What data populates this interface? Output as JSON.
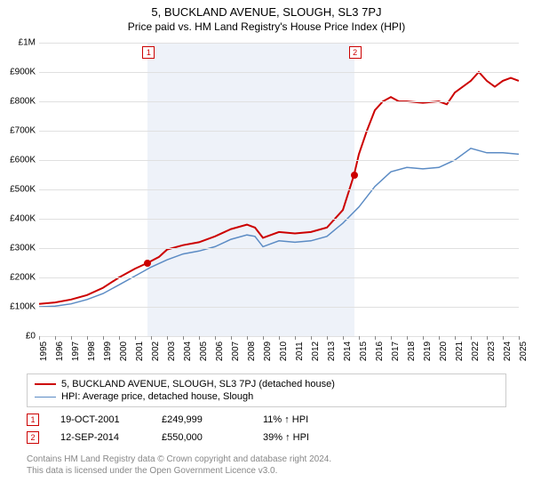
{
  "title": "5, BUCKLAND AVENUE, SLOUGH, SL3 7PJ",
  "subtitle": "Price paid vs. HM Land Registry's House Price Index (HPI)",
  "chart": {
    "type": "line",
    "background_color": "#ffffff",
    "grid_color": "#e0e0e0",
    "axis_color": "#888888",
    "highlight_band_color": "#eef2f9",
    "xlim": [
      1995,
      2025
    ],
    "ylim": [
      0,
      1000000
    ],
    "ytick_step": 100000,
    "y_labels": [
      "£0",
      "£100K",
      "£200K",
      "£300K",
      "£400K",
      "£500K",
      "£600K",
      "£700K",
      "£800K",
      "£900K",
      "£1M"
    ],
    "x_ticks": [
      1995,
      1996,
      1997,
      1998,
      1999,
      2000,
      2001,
      2002,
      2003,
      2004,
      2005,
      2006,
      2007,
      2008,
      2009,
      2010,
      2011,
      2012,
      2013,
      2014,
      2015,
      2016,
      2017,
      2018,
      2019,
      2020,
      2021,
      2022,
      2023,
      2024,
      2025
    ],
    "highlight_band": {
      "x_start": 2001.8,
      "x_end": 2014.7
    },
    "series": [
      {
        "name": "5, BUCKLAND AVENUE, SLOUGH, SL3 7PJ (detached house)",
        "color": "#cc0000",
        "line_width": 2,
        "data": [
          [
            1995,
            110000
          ],
          [
            1996,
            115000
          ],
          [
            1997,
            125000
          ],
          [
            1998,
            140000
          ],
          [
            1999,
            165000
          ],
          [
            2000,
            200000
          ],
          [
            2001,
            230000
          ],
          [
            2001.8,
            249999
          ],
          [
            2002.5,
            270000
          ],
          [
            2003,
            295000
          ],
          [
            2004,
            310000
          ],
          [
            2005,
            320000
          ],
          [
            2006,
            340000
          ],
          [
            2007,
            365000
          ],
          [
            2008,
            380000
          ],
          [
            2008.5,
            370000
          ],
          [
            2009,
            335000
          ],
          [
            2010,
            355000
          ],
          [
            2011,
            350000
          ],
          [
            2012,
            355000
          ],
          [
            2013,
            370000
          ],
          [
            2014,
            430000
          ],
          [
            2014.7,
            550000
          ],
          [
            2015,
            620000
          ],
          [
            2015.5,
            700000
          ],
          [
            2016,
            770000
          ],
          [
            2016.5,
            800000
          ],
          [
            2017,
            815000
          ],
          [
            2017.5,
            800000
          ],
          [
            2018,
            800000
          ],
          [
            2019,
            795000
          ],
          [
            2020,
            800000
          ],
          [
            2020.5,
            790000
          ],
          [
            2021,
            830000
          ],
          [
            2022,
            870000
          ],
          [
            2022.5,
            900000
          ],
          [
            2023,
            870000
          ],
          [
            2023.5,
            850000
          ],
          [
            2024,
            870000
          ],
          [
            2024.5,
            880000
          ],
          [
            2025,
            870000
          ]
        ]
      },
      {
        "name": "HPI: Average price, detached house, Slough",
        "color": "#5b8bc4",
        "line_width": 1.5,
        "data": [
          [
            1995,
            100000
          ],
          [
            1996,
            102000
          ],
          [
            1997,
            110000
          ],
          [
            1998,
            125000
          ],
          [
            1999,
            145000
          ],
          [
            2000,
            175000
          ],
          [
            2001,
            205000
          ],
          [
            2002,
            235000
          ],
          [
            2003,
            260000
          ],
          [
            2004,
            280000
          ],
          [
            2005,
            290000
          ],
          [
            2006,
            305000
          ],
          [
            2007,
            330000
          ],
          [
            2008,
            345000
          ],
          [
            2008.5,
            340000
          ],
          [
            2009,
            305000
          ],
          [
            2010,
            325000
          ],
          [
            2011,
            320000
          ],
          [
            2012,
            325000
          ],
          [
            2013,
            340000
          ],
          [
            2014,
            385000
          ],
          [
            2015,
            440000
          ],
          [
            2016,
            510000
          ],
          [
            2017,
            560000
          ],
          [
            2018,
            575000
          ],
          [
            2019,
            570000
          ],
          [
            2020,
            575000
          ],
          [
            2021,
            600000
          ],
          [
            2022,
            640000
          ],
          [
            2023,
            625000
          ],
          [
            2024,
            625000
          ],
          [
            2025,
            620000
          ]
        ]
      }
    ],
    "markers": [
      {
        "id": "1",
        "x": 2001.8,
        "price": 249999,
        "color": "#cc0000"
      },
      {
        "id": "2",
        "x": 2014.7,
        "price": 550000,
        "color": "#cc0000"
      }
    ]
  },
  "legend": {
    "items": [
      {
        "color": "#cc0000",
        "width": 2,
        "label": "5, BUCKLAND AVENUE, SLOUGH, SL3 7PJ (detached house)"
      },
      {
        "color": "#5b8bc4",
        "width": 1.5,
        "label": "HPI: Average price, detached house, Slough"
      }
    ]
  },
  "transactions": [
    {
      "id": "1",
      "date": "19-OCT-2001",
      "price": "£249,999",
      "delta": "11% ↑ HPI"
    },
    {
      "id": "2",
      "date": "12-SEP-2014",
      "price": "£550,000",
      "delta": "39% ↑ HPI"
    }
  ],
  "footnote_line1": "Contains HM Land Registry data © Crown copyright and database right 2024.",
  "footnote_line2": "This data is licensed under the Open Government Licence v3.0."
}
